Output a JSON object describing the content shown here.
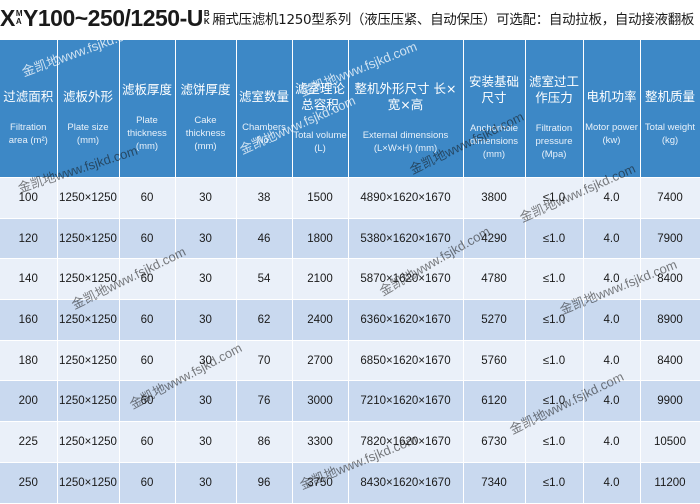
{
  "title": {
    "prefix_letter": "X",
    "stack_left_top": "M",
    "stack_left_bottom": "A",
    "model": "Y100~250/1250-U",
    "stack_right_top": "B",
    "stack_right_bottom": "K",
    "description": "厢式压滤机1250型系列（液压压紧、自动保压）可选配：自动拉板，自动接液翻板"
  },
  "table": {
    "headers": [
      {
        "zh": "过滤面积",
        "en": "Filtration area (m²)"
      },
      {
        "zh": "滤板外形",
        "en": "Plate size (mm)"
      },
      {
        "zh": "滤板厚度",
        "en": "Plate thickness (mm)"
      },
      {
        "zh": "滤饼厚度",
        "en": "Cake thickness (mm)"
      },
      {
        "zh": "滤室数量",
        "en": "Chambers No."
      },
      {
        "zh": "滤室理论总容积",
        "en": "Total volume (L)"
      },
      {
        "zh": "整机外形尺寸 长×宽×高",
        "en": "External dimensions (L×W×H) (mm)"
      },
      {
        "zh": "安装基础尺寸",
        "en": "Anchorhole dimensions (mm)"
      },
      {
        "zh": "滤室过工作压力",
        "en": "Filtration pressure (Mpa)"
      },
      {
        "zh": "电机功率",
        "en": "Motor power (kw)"
      },
      {
        "zh": "整机质量",
        "en": "Total weight (kg)"
      }
    ],
    "rows": [
      [
        "100",
        "1250×1250",
        "60",
        "30",
        "38",
        "1500",
        "4890×1620×1670",
        "3800",
        "≤1.0",
        "4.0",
        "7400"
      ],
      [
        "120",
        "1250×1250",
        "60",
        "30",
        "46",
        "1800",
        "5380×1620×1670",
        "4290",
        "≤1.0",
        "4.0",
        "7900"
      ],
      [
        "140",
        "1250×1250",
        "60",
        "30",
        "54",
        "2100",
        "5870×1620×1670",
        "4780",
        "≤1.0",
        "4.0",
        "8400"
      ],
      [
        "160",
        "1250×1250",
        "60",
        "30",
        "62",
        "2400",
        "6360×1620×1670",
        "5270",
        "≤1.0",
        "4.0",
        "8900"
      ],
      [
        "180",
        "1250×1250",
        "60",
        "30",
        "70",
        "2700",
        "6850×1620×1670",
        "5760",
        "≤1.0",
        "4.0",
        "8400"
      ],
      [
        "200",
        "1250×1250",
        "60",
        "30",
        "76",
        "3000",
        "7210×1620×1670",
        "6120",
        "≤1.0",
        "4.0",
        "9900"
      ],
      [
        "225",
        "1250×1250",
        "60",
        "30",
        "86",
        "3300",
        "7820×1620×1670",
        "6730",
        "≤1.0",
        "4.0",
        "10500"
      ],
      [
        "250",
        "1250×1250",
        "60",
        "30",
        "96",
        "3750",
        "8430×1620×1670",
        "7340",
        "≤1.0",
        "4.0",
        "11200"
      ]
    ]
  },
  "watermark": "金凯地www.fsjkd.com"
}
